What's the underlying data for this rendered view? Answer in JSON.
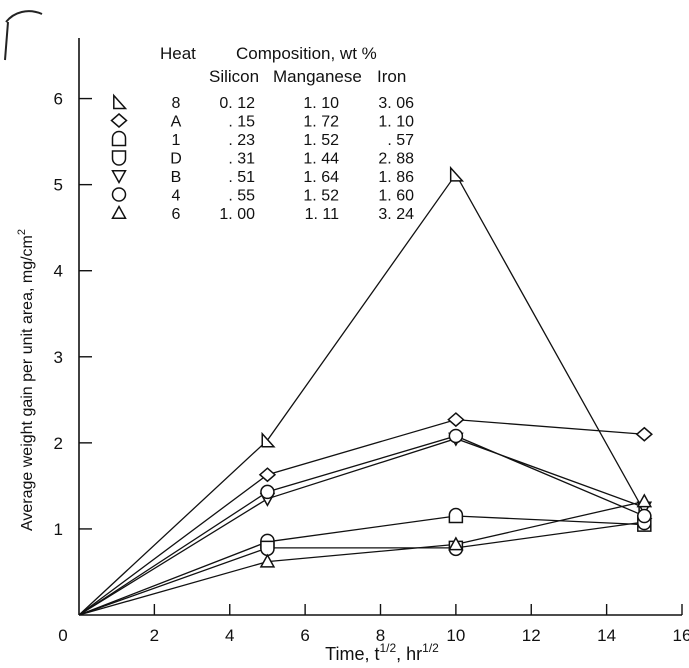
{
  "chart_data": {
    "type": "line",
    "xlabel": "Time, t",
    "xlabel_sup1": "1/2",
    "xlabel_mid": ", hr",
    "xlabel_sup2": "1/2",
    "ylabel": "Average weight gain per unit area,  mg/cm",
    "ylabel_sup": "2",
    "xlim": [
      0,
      16
    ],
    "ylim": [
      0,
      7
    ],
    "x_ticks": [
      "0",
      "2",
      "4",
      "6",
      "8",
      "10",
      "12",
      "14",
      "16"
    ],
    "y_ticks": [
      "1",
      "2",
      "3",
      "4",
      "5",
      "6"
    ],
    "grid": false,
    "legend": {
      "placement": "top-left",
      "header_heat": "Heat",
      "header_composition": "Composition, wt %",
      "header_silicon": "Silicon",
      "header_manganese": "Manganese",
      "header_iron": "Iron",
      "rows": [
        {
          "marker": "triangle-right",
          "heat": "8",
          "silicon": "0. 12",
          "manganese": "1. 10",
          "iron": "3. 06"
        },
        {
          "marker": "diamond",
          "heat": "A",
          "silicon": ". 15",
          "manganese": "1. 72",
          "iron": "1. 10"
        },
        {
          "marker": "square-round-top",
          "heat": "1",
          "silicon": ". 23",
          "manganese": "1. 52",
          "iron": ". 57"
        },
        {
          "marker": "square-round-bottom",
          "heat": "D",
          "silicon": ". 31",
          "manganese": "1. 44",
          "iron": "2. 88"
        },
        {
          "marker": "triangle-down",
          "heat": "B",
          "silicon": ". 51",
          "manganese": "1. 64",
          "iron": "1. 86"
        },
        {
          "marker": "circle",
          "heat": "4",
          "silicon": ". 55",
          "manganese": "1. 52",
          "iron": "1. 60"
        },
        {
          "marker": "triangle-up",
          "heat": "6",
          "silicon": "1. 00",
          "manganese": "1. 11",
          "iron": "3. 24"
        }
      ]
    },
    "series": [
      {
        "heat": "8",
        "marker": "triangle-right",
        "points": [
          [
            0,
            0
          ],
          [
            5,
            2.03
          ],
          [
            10,
            5.12
          ],
          [
            15,
            1.2
          ]
        ]
      },
      {
        "heat": "A",
        "marker": "diamond",
        "points": [
          [
            0,
            0
          ],
          [
            5,
            1.63
          ],
          [
            10,
            2.27
          ],
          [
            15,
            2.1
          ]
        ]
      },
      {
        "heat": "1",
        "marker": "square-round-top",
        "points": [
          [
            0,
            0
          ],
          [
            5,
            0.85
          ],
          [
            10,
            1.15
          ],
          [
            15,
            1.05
          ]
        ]
      },
      {
        "heat": "D",
        "marker": "square-round-bottom",
        "points": [
          [
            0,
            0
          ],
          [
            5,
            0.78
          ],
          [
            10,
            0.78
          ],
          [
            15,
            1.08
          ]
        ]
      },
      {
        "heat": "B",
        "marker": "triangle-down",
        "points": [
          [
            0,
            0
          ],
          [
            5,
            1.35
          ],
          [
            10,
            2.05
          ],
          [
            15,
            1.25
          ]
        ]
      },
      {
        "heat": "4",
        "marker": "circle",
        "points": [
          [
            0,
            0
          ],
          [
            5,
            1.43
          ],
          [
            10,
            2.08
          ],
          [
            15,
            1.15
          ]
        ]
      },
      {
        "heat": "6",
        "marker": "triangle-up",
        "points": [
          [
            0,
            0
          ],
          [
            5,
            0.62
          ],
          [
            10,
            0.82
          ],
          [
            15,
            1.32
          ]
        ]
      }
    ]
  }
}
